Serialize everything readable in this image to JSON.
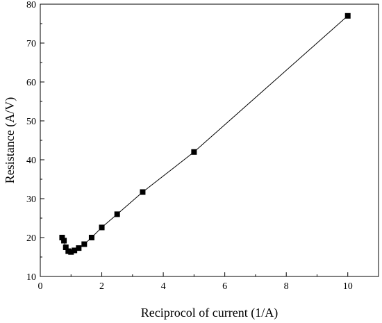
{
  "chart_data": {
    "type": "scatter",
    "title": "",
    "xlabel": "Reciprocol of current (1/A)",
    "ylabel": "Resistance (A/V)",
    "xlim": [
      0,
      11
    ],
    "ylim": [
      10,
      80
    ],
    "x_ticks": [
      0,
      2,
      4,
      6,
      8,
      10
    ],
    "y_ticks": [
      10,
      20,
      30,
      40,
      50,
      60,
      70,
      80
    ],
    "grid": false,
    "legend": "none",
    "marker": "square",
    "line_connected": true,
    "color": "#000000",
    "series": [
      {
        "x": [
          0.71,
          0.77,
          0.83,
          0.91,
          1.0,
          1.11,
          1.25,
          1.43,
          1.67,
          2.0,
          2.5,
          3.33,
          5.0,
          10.0
        ],
        "y": [
          20.0,
          19.2,
          17.5,
          16.5,
          16.3,
          16.7,
          17.3,
          18.3,
          20.0,
          22.6,
          26.0,
          31.7,
          42.0,
          77.0
        ]
      }
    ]
  }
}
